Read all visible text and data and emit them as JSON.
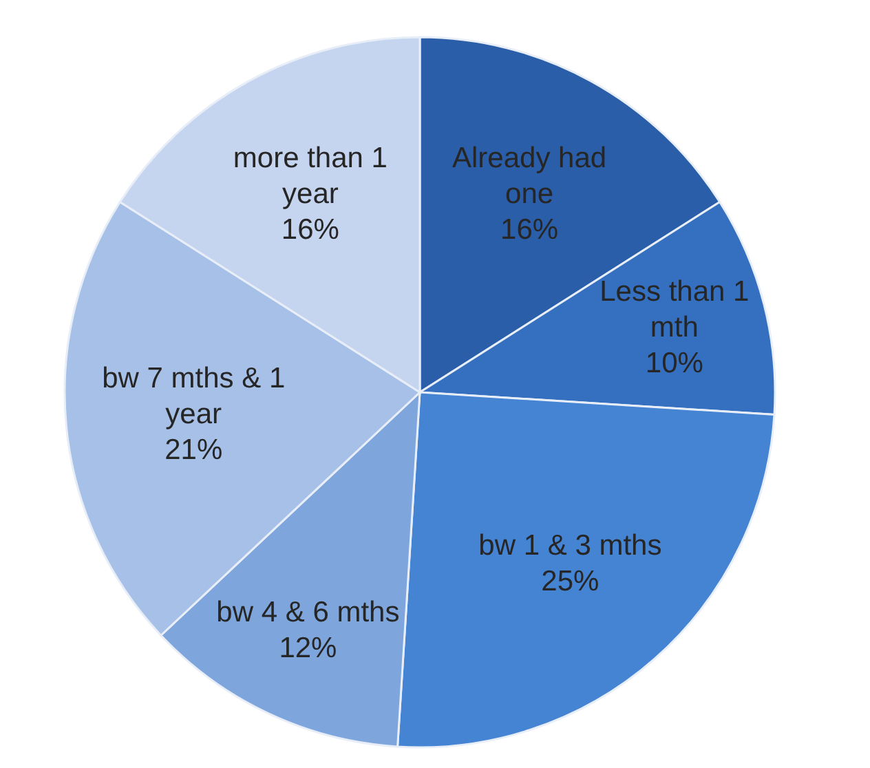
{
  "chart_data": {
    "type": "pie",
    "categories": [
      "Already had one",
      "Less than 1 mth",
      "bw 1 & 3 mths",
      "bw 4 & 6 mths",
      "bw 7 mths & 1 year",
      "more than 1 year"
    ],
    "values": [
      16,
      10,
      25,
      12,
      21,
      16
    ],
    "value_labels": [
      "16%",
      "10%",
      "25%",
      "12%",
      "21%",
      "16%"
    ],
    "colors": [
      "#2b5ea8",
      "#3470bf",
      "#4583d3",
      "#7ea6dc",
      "#a6c0e7",
      "#c6d5ef"
    ],
    "legend": false
  }
}
